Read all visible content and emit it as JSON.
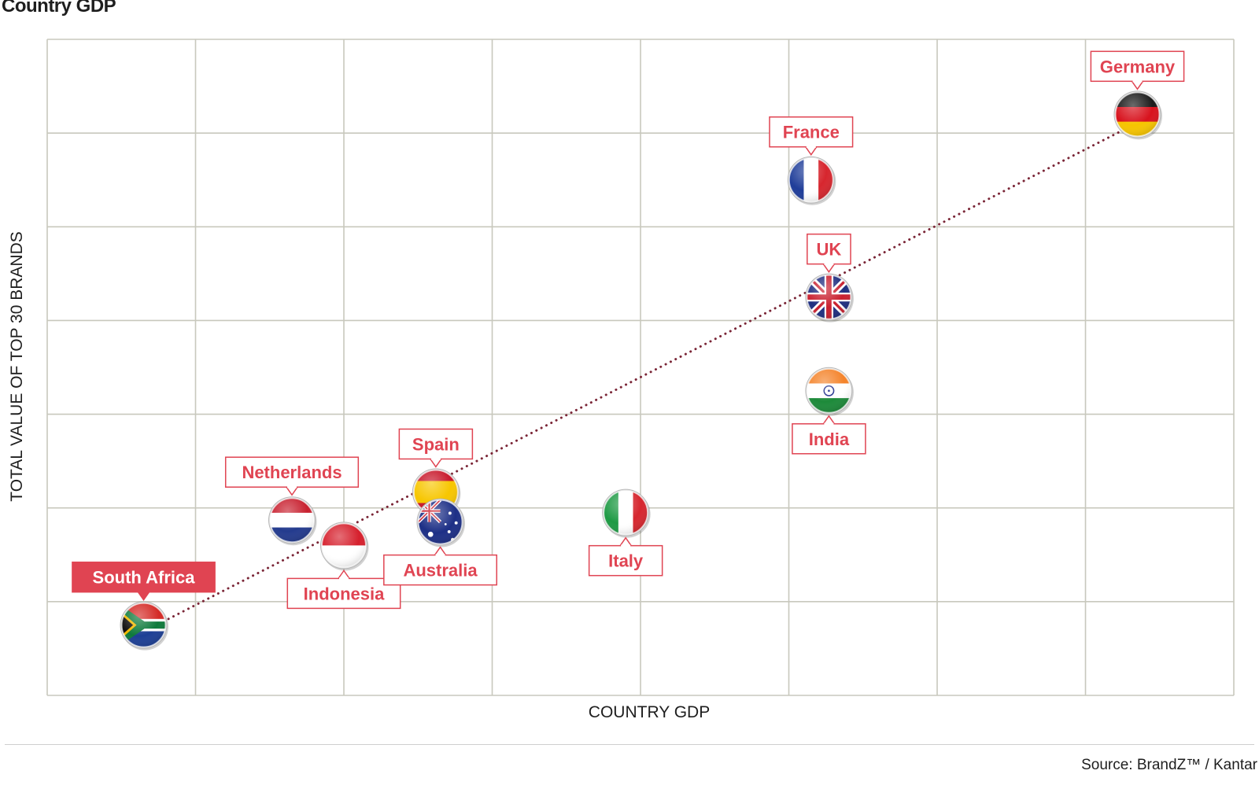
{
  "page": {
    "title": "Country GDP",
    "source": "Source: BrandZ™ / Kantar"
  },
  "colors": {
    "grid": "#c8c8bd",
    "accent": "#e04452",
    "trend": "#7a2536",
    "text": "#1e1e1e"
  },
  "chart_data": {
    "type": "scatter",
    "title": "Country GDP",
    "xlabel": "COUNTRY GDP",
    "ylabel": "TOTAL VALUE OF TOP 30 BRANDS",
    "xlim": [
      0,
      8
    ],
    "ylim": [
      0,
      7
    ],
    "grid": true,
    "tick_labels": "none",
    "trendline": {
      "style": "dotted",
      "from": [
        0.65,
        0.68
      ],
      "to": [
        7.35,
        6.11
      ]
    },
    "points": [
      {
        "label": "South Africa",
        "x": 0.65,
        "y": 0.75,
        "flag": "south-africa-flag",
        "callout": "above",
        "highlight": true
      },
      {
        "label": "Netherlands",
        "x": 1.65,
        "y": 1.87,
        "flag": "netherlands-flag",
        "callout": "above",
        "highlight": false
      },
      {
        "label": "Indonesia",
        "x": 2.0,
        "y": 1.6,
        "flag": "indonesia-flag",
        "callout": "below",
        "highlight": false
      },
      {
        "label": "Spain",
        "x": 2.62,
        "y": 2.17,
        "flag": "spain-flag",
        "callout": "above",
        "highlight": false
      },
      {
        "label": "Australia",
        "x": 2.65,
        "y": 1.85,
        "flag": "australia-flag",
        "callout": "below",
        "highlight": false
      },
      {
        "label": "Italy",
        "x": 3.9,
        "y": 1.95,
        "flag": "italy-flag",
        "callout": "below",
        "highlight": false
      },
      {
        "label": "France",
        "x": 5.15,
        "y": 5.5,
        "flag": "france-flag",
        "callout": "above",
        "highlight": false
      },
      {
        "label": "UK",
        "x": 5.27,
        "y": 4.25,
        "flag": "uk-flag",
        "callout": "above",
        "highlight": false
      },
      {
        "label": "India",
        "x": 5.27,
        "y": 3.25,
        "flag": "india-flag",
        "callout": "below",
        "highlight": false
      },
      {
        "label": "Germany",
        "x": 7.35,
        "y": 6.2,
        "flag": "germany-flag",
        "callout": "above",
        "highlight": false
      }
    ]
  }
}
